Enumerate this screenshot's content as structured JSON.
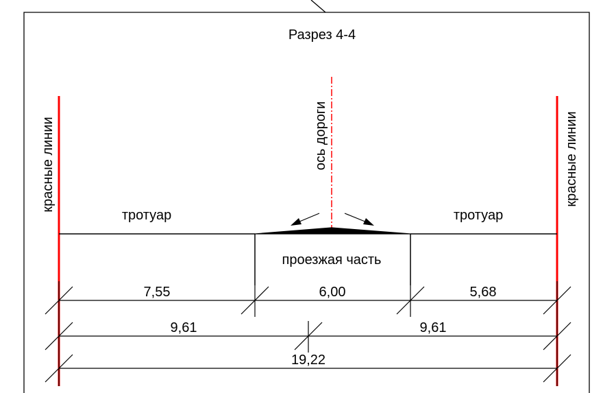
{
  "title": "Разрез 4-4",
  "labels": {
    "red_line_left": "красные линии",
    "red_line_right": "красные линии",
    "road_axis": "ось дороги",
    "sidewalk_left": "тротуар",
    "sidewalk_right": "тротуар",
    "carriageway": "проезжая часть"
  },
  "dimensions": {
    "row1": [
      "7,55",
      "6,00",
      "5,68"
    ],
    "row2": [
      "9,61",
      "9,61"
    ],
    "row3": "19,22"
  },
  "colors": {
    "red_line": "#ff0000",
    "line": "#000000",
    "background": "#ffffff"
  }
}
